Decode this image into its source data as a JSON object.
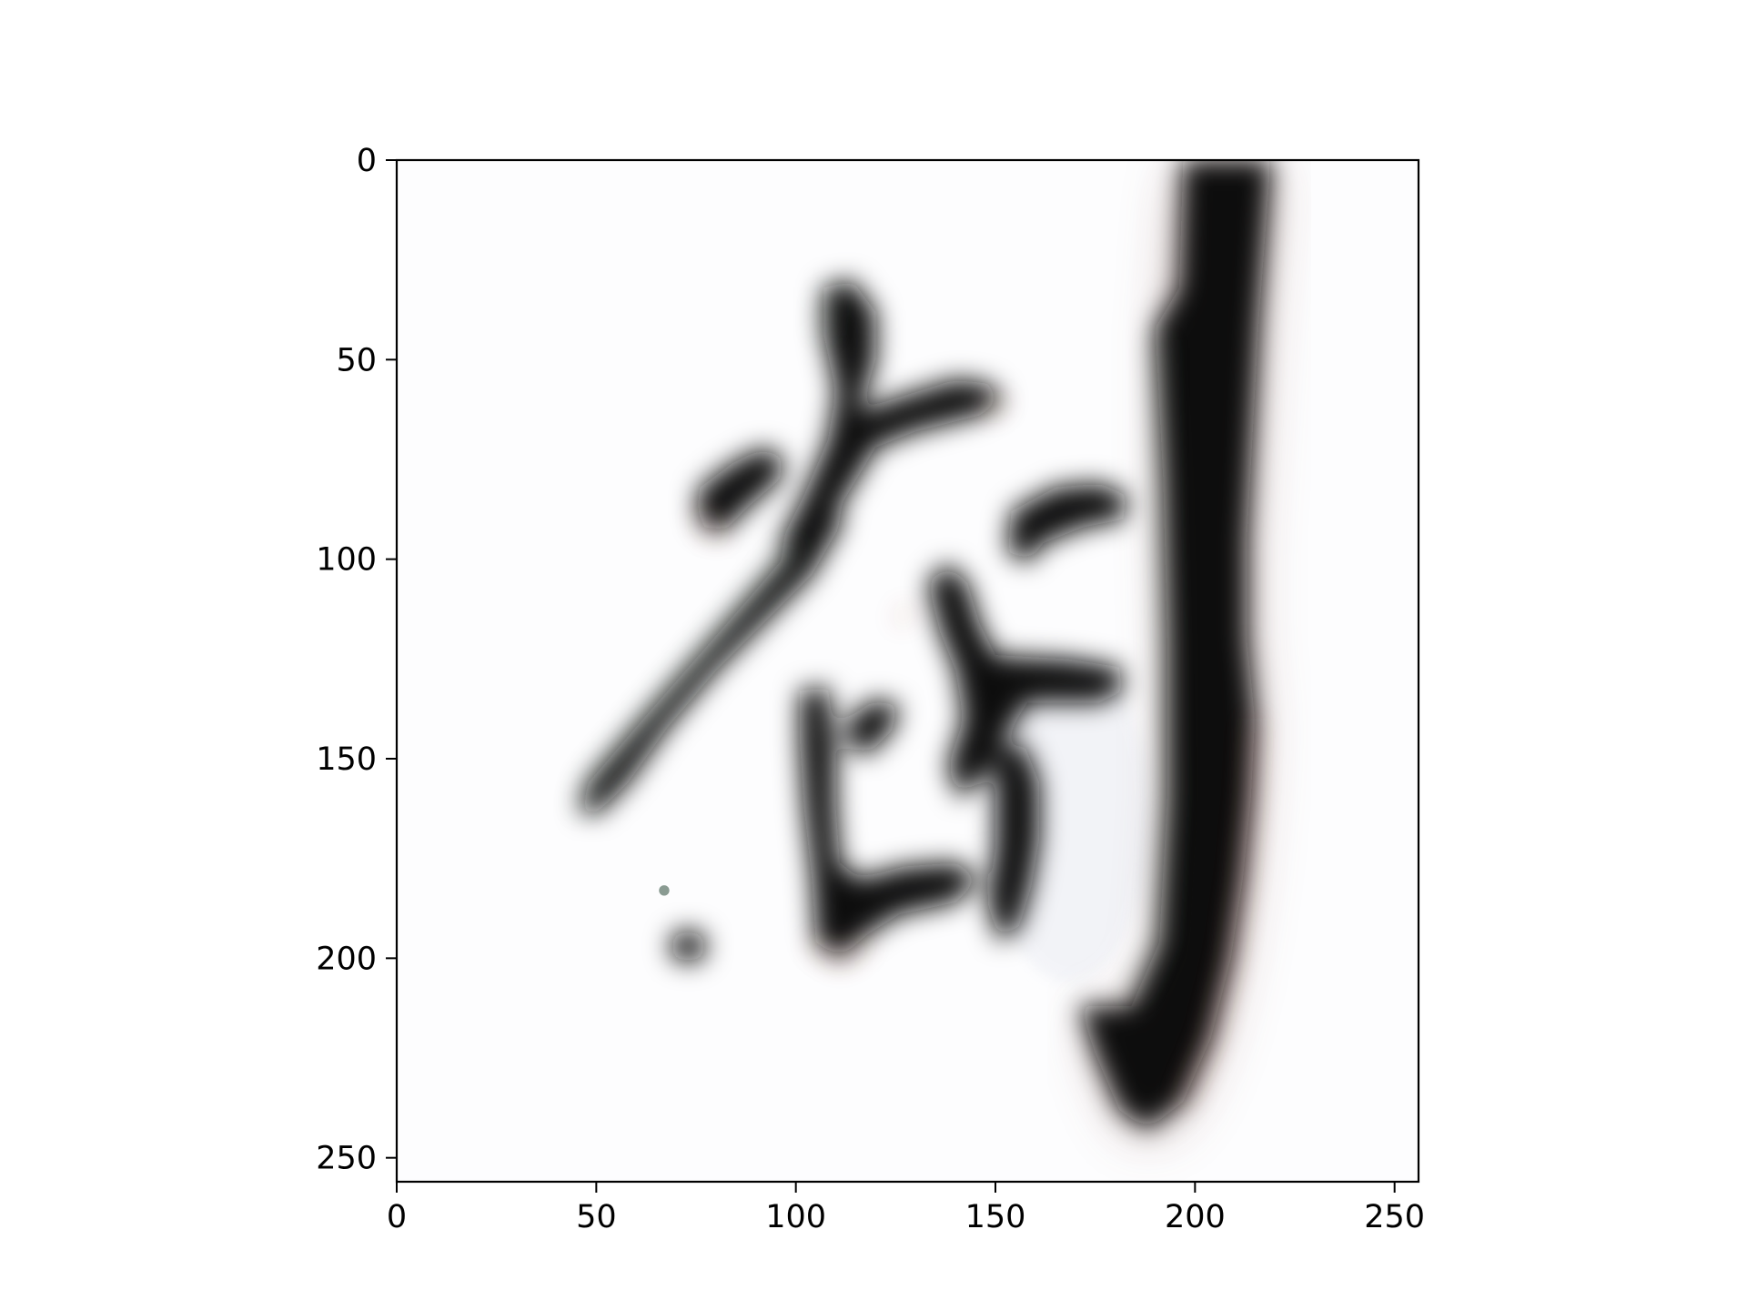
{
  "chart_data": {
    "type": "image",
    "title": "",
    "xlabel": "",
    "ylabel": "",
    "image_size": [
      256,
      256
    ],
    "xlim": [
      0,
      256
    ],
    "ylim": [
      256,
      0
    ],
    "x_ticks": [
      0,
      50,
      100,
      150,
      200,
      250
    ],
    "y_ticks": [
      0,
      50,
      100,
      150,
      200,
      250
    ],
    "x_tick_labels": [
      "0",
      "50",
      "100",
      "150",
      "200",
      "250"
    ],
    "y_tick_labels": [
      "0",
      "50",
      "100",
      "150",
      "200",
      "250"
    ],
    "grid": false,
    "legend": "none",
    "colors": {
      "background": "#ffffff",
      "ink": "#0a0a0a",
      "ink_edge_red": "#8a3a2a",
      "ink_edge_green": "#3d5a4a",
      "axis": "#000000"
    },
    "content": "calligraphy-glyph"
  }
}
